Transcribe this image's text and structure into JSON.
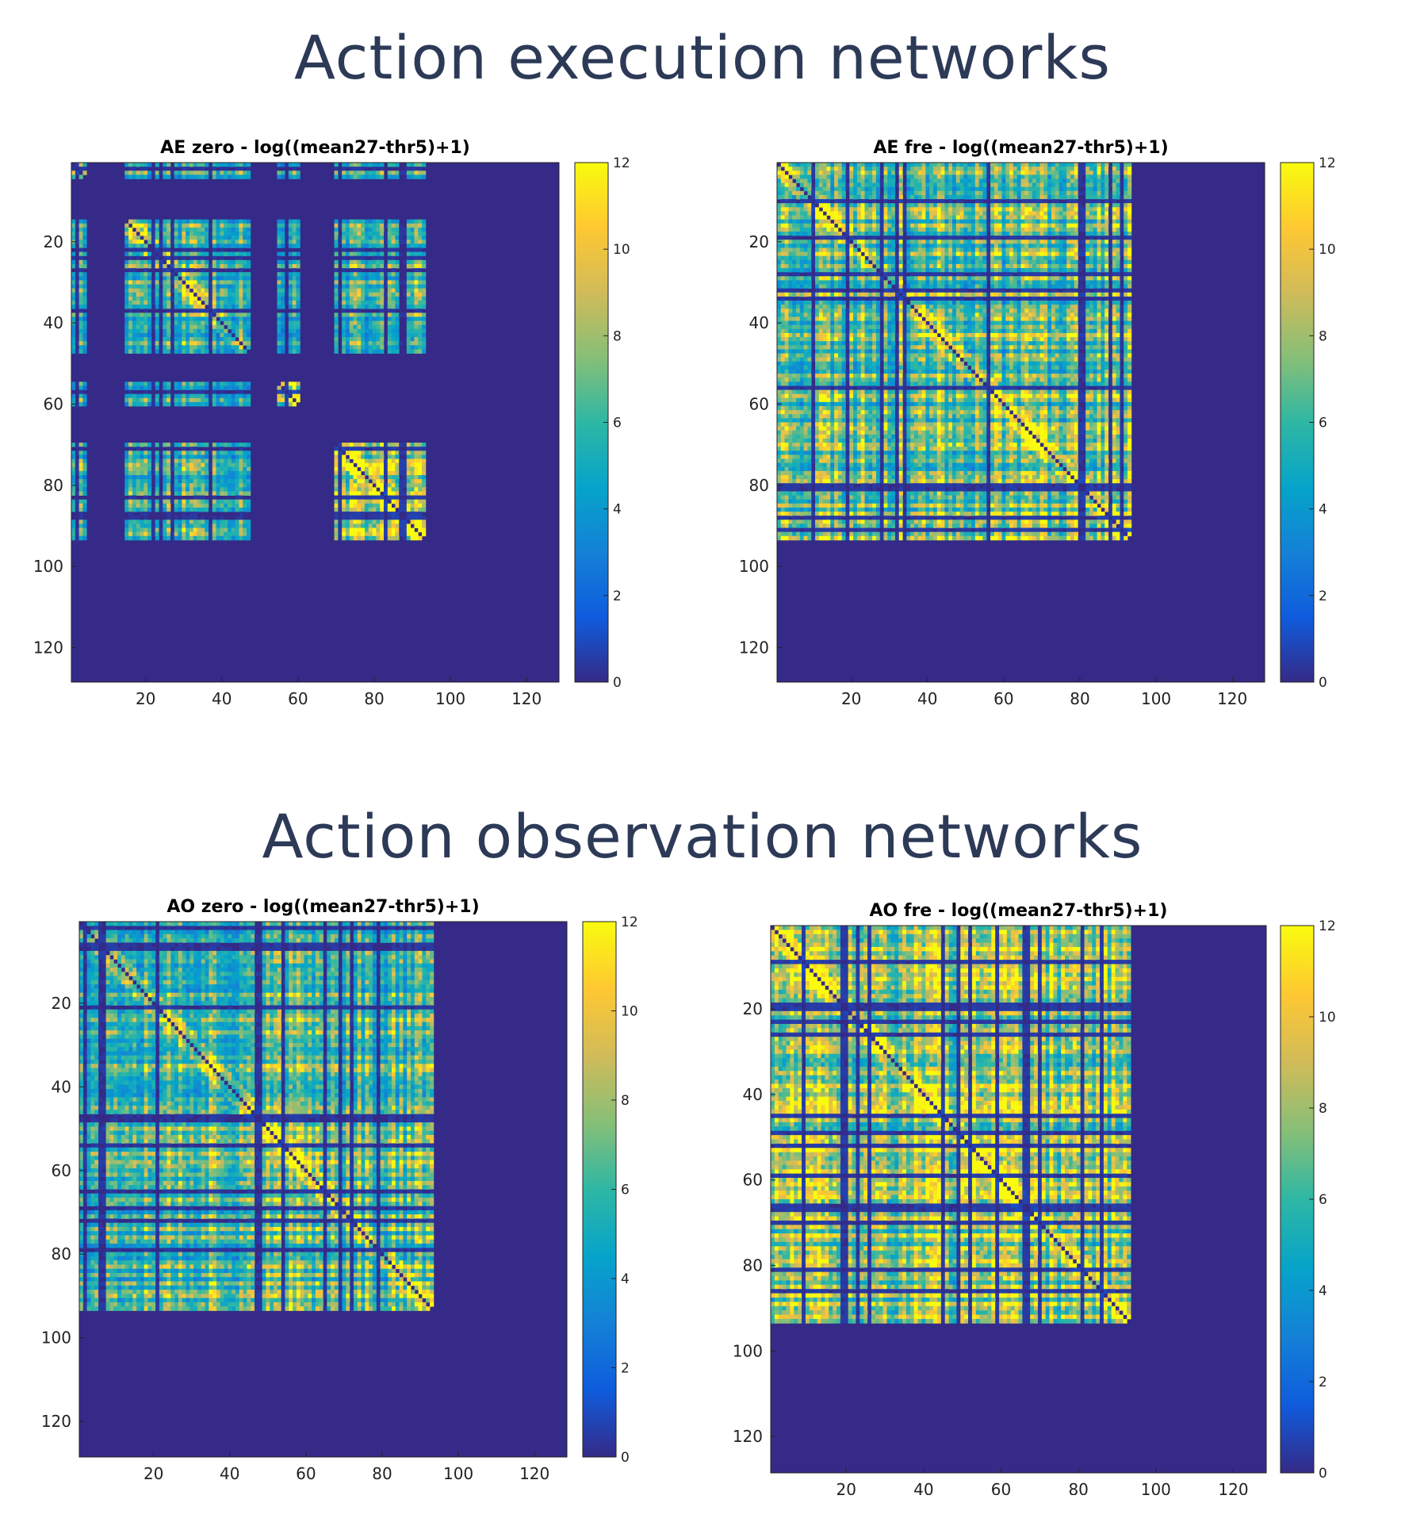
{
  "sections": [
    {
      "title": "Action execution networks"
    },
    {
      "title": "Action observation networks"
    }
  ],
  "colormap": [
    "#352a87",
    "#0f5cdd",
    "#1481d6",
    "#06a4ca",
    "#2eb7a4",
    "#87bf77",
    "#d1bb59",
    "#fec832",
    "#f9fb0e"
  ],
  "chart_data": [
    {
      "type": "heatmap",
      "id": "ae-zero",
      "title": "AE zero - log((mean27-thr5)+1)",
      "matrix_size": 128,
      "xlim": [
        0.5,
        128.5
      ],
      "ylim": [
        0.5,
        128.5
      ],
      "xticks": [
        20,
        40,
        60,
        80,
        100,
        120
      ],
      "yticks": [
        20,
        40,
        60,
        80,
        100,
        120
      ],
      "clim": [
        0,
        12
      ],
      "colorbar_ticks": [
        0,
        2,
        4,
        6,
        8,
        10,
        12
      ],
      "seed": 11,
      "blocks": [
        {
          "range": [
            1,
            47
          ],
          "level": 5.5
        },
        {
          "range": [
            55,
            60
          ],
          "level": 7.5
        },
        {
          "range": [
            70,
            93
          ],
          "level": 6.5
        },
        {
          "range": [
            100,
            128
          ],
          "level": 0.3
        }
      ],
      "cross": [
        {
          "a": [
            1,
            47
          ],
          "b": [
            55,
            93
          ],
          "level": 5.0
        },
        {
          "a": [
            1,
            93
          ],
          "b": [
            98,
            105
          ],
          "level": 1.2
        }
      ],
      "gaps": [
        [
          5,
          14
        ],
        [
          48,
          54
        ],
        [
          61,
          69
        ],
        [
          94,
          128
        ]
      ],
      "sparse_rows": [
        [
          98,
          128,
          1.5
        ]
      ]
    },
    {
      "type": "heatmap",
      "id": "ae-fre",
      "title": "AE fre - log((mean27-thr5)+1)",
      "matrix_size": 128,
      "xlim": [
        0.5,
        128.5
      ],
      "ylim": [
        0.5,
        128.5
      ],
      "xticks": [
        20,
        40,
        60,
        80,
        100,
        120
      ],
      "yticks": [
        20,
        40,
        60,
        80,
        100,
        120
      ],
      "clim": [
        0,
        12
      ],
      "colorbar_ticks": [
        0,
        2,
        4,
        6,
        8,
        10,
        12
      ],
      "seed": 23,
      "blocks": [
        {
          "range": [
            1,
            93
          ],
          "level": 6.5
        }
      ],
      "cross": [
        {
          "a": [
            1,
            93
          ],
          "b": [
            98,
            128
          ],
          "level": 1.0
        }
      ],
      "gaps": [
        [
          94,
          128
        ]
      ],
      "sparse_rows": [
        [
          98,
          128,
          1.5
        ]
      ]
    },
    {
      "type": "heatmap",
      "id": "ao-zero",
      "title": "AO zero - log((mean27-thr5)+1)",
      "matrix_size": 128,
      "xlim": [
        0.5,
        128.5
      ],
      "ylim": [
        0.5,
        128.5
      ],
      "xticks": [
        20,
        40,
        60,
        80,
        100,
        120
      ],
      "yticks": [
        20,
        40,
        60,
        80,
        100,
        120
      ],
      "clim": [
        0,
        12
      ],
      "colorbar_ticks": [
        0,
        2,
        4,
        6,
        8,
        10,
        12
      ],
      "seed": 37,
      "blocks": [
        {
          "range": [
            1,
            93
          ],
          "level": 6.0
        }
      ],
      "cross": [
        {
          "a": [
            1,
            93
          ],
          "b": [
            98,
            128
          ],
          "level": 1.0
        }
      ],
      "gaps": [
        [
          94,
          128
        ]
      ],
      "sparse_rows": [
        [
          98,
          128,
          1.5
        ]
      ]
    },
    {
      "type": "heatmap",
      "id": "ao-fre",
      "title": "AO fre - log((mean27-thr5)+1)",
      "matrix_size": 128,
      "xlim": [
        0.5,
        128.5
      ],
      "ylim": [
        0.5,
        128.5
      ],
      "xticks": [
        20,
        40,
        60,
        80,
        100,
        120
      ],
      "yticks": [
        20,
        40,
        60,
        80,
        100,
        120
      ],
      "clim": [
        0,
        12
      ],
      "colorbar_ticks": [
        0,
        2,
        4,
        6,
        8,
        10,
        12
      ],
      "seed": 51,
      "blocks": [
        {
          "range": [
            1,
            93
          ],
          "level": 6.8
        }
      ],
      "cross": [
        {
          "a": [
            1,
            93
          ],
          "b": [
            98,
            128
          ],
          "level": 1.0
        }
      ],
      "gaps": [
        [
          94,
          128
        ]
      ],
      "sparse_rows": [
        [
          98,
          128,
          1.5
        ]
      ]
    }
  ]
}
